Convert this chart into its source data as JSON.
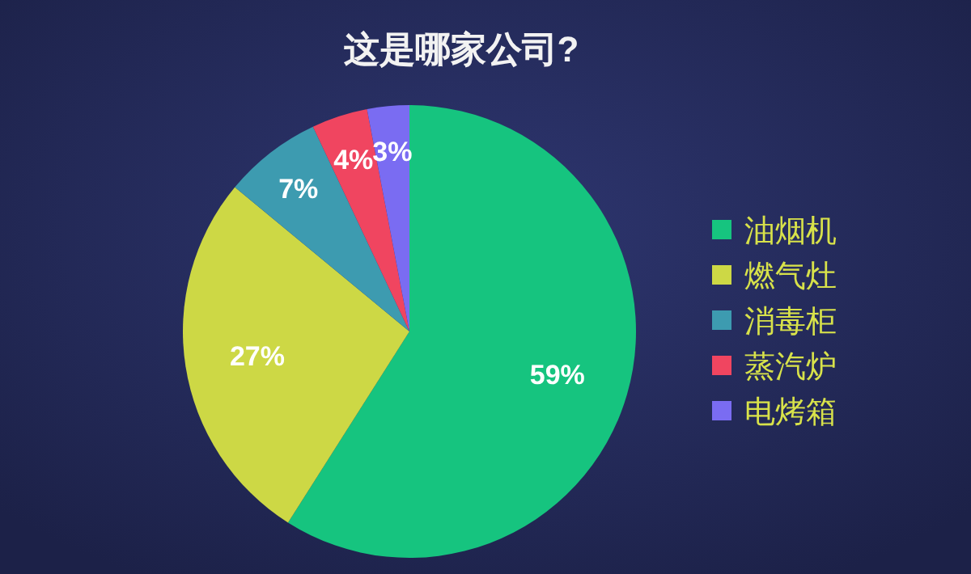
{
  "chart_data": {
    "type": "pie",
    "title": "这是哪家公司?",
    "categories": [
      "油烟机",
      "燃气灶",
      "消毒柜",
      "蒸汽炉",
      "电烤箱"
    ],
    "values": [
      59,
      27,
      7,
      4,
      3
    ],
    "colors": [
      "#16c47f",
      "#cdd845",
      "#3d9bb0",
      "#f04560",
      "#7a6cf2"
    ],
    "value_labels": [
      "59%",
      "27%",
      "7%",
      "4%",
      "3%"
    ],
    "legend": "right"
  }
}
